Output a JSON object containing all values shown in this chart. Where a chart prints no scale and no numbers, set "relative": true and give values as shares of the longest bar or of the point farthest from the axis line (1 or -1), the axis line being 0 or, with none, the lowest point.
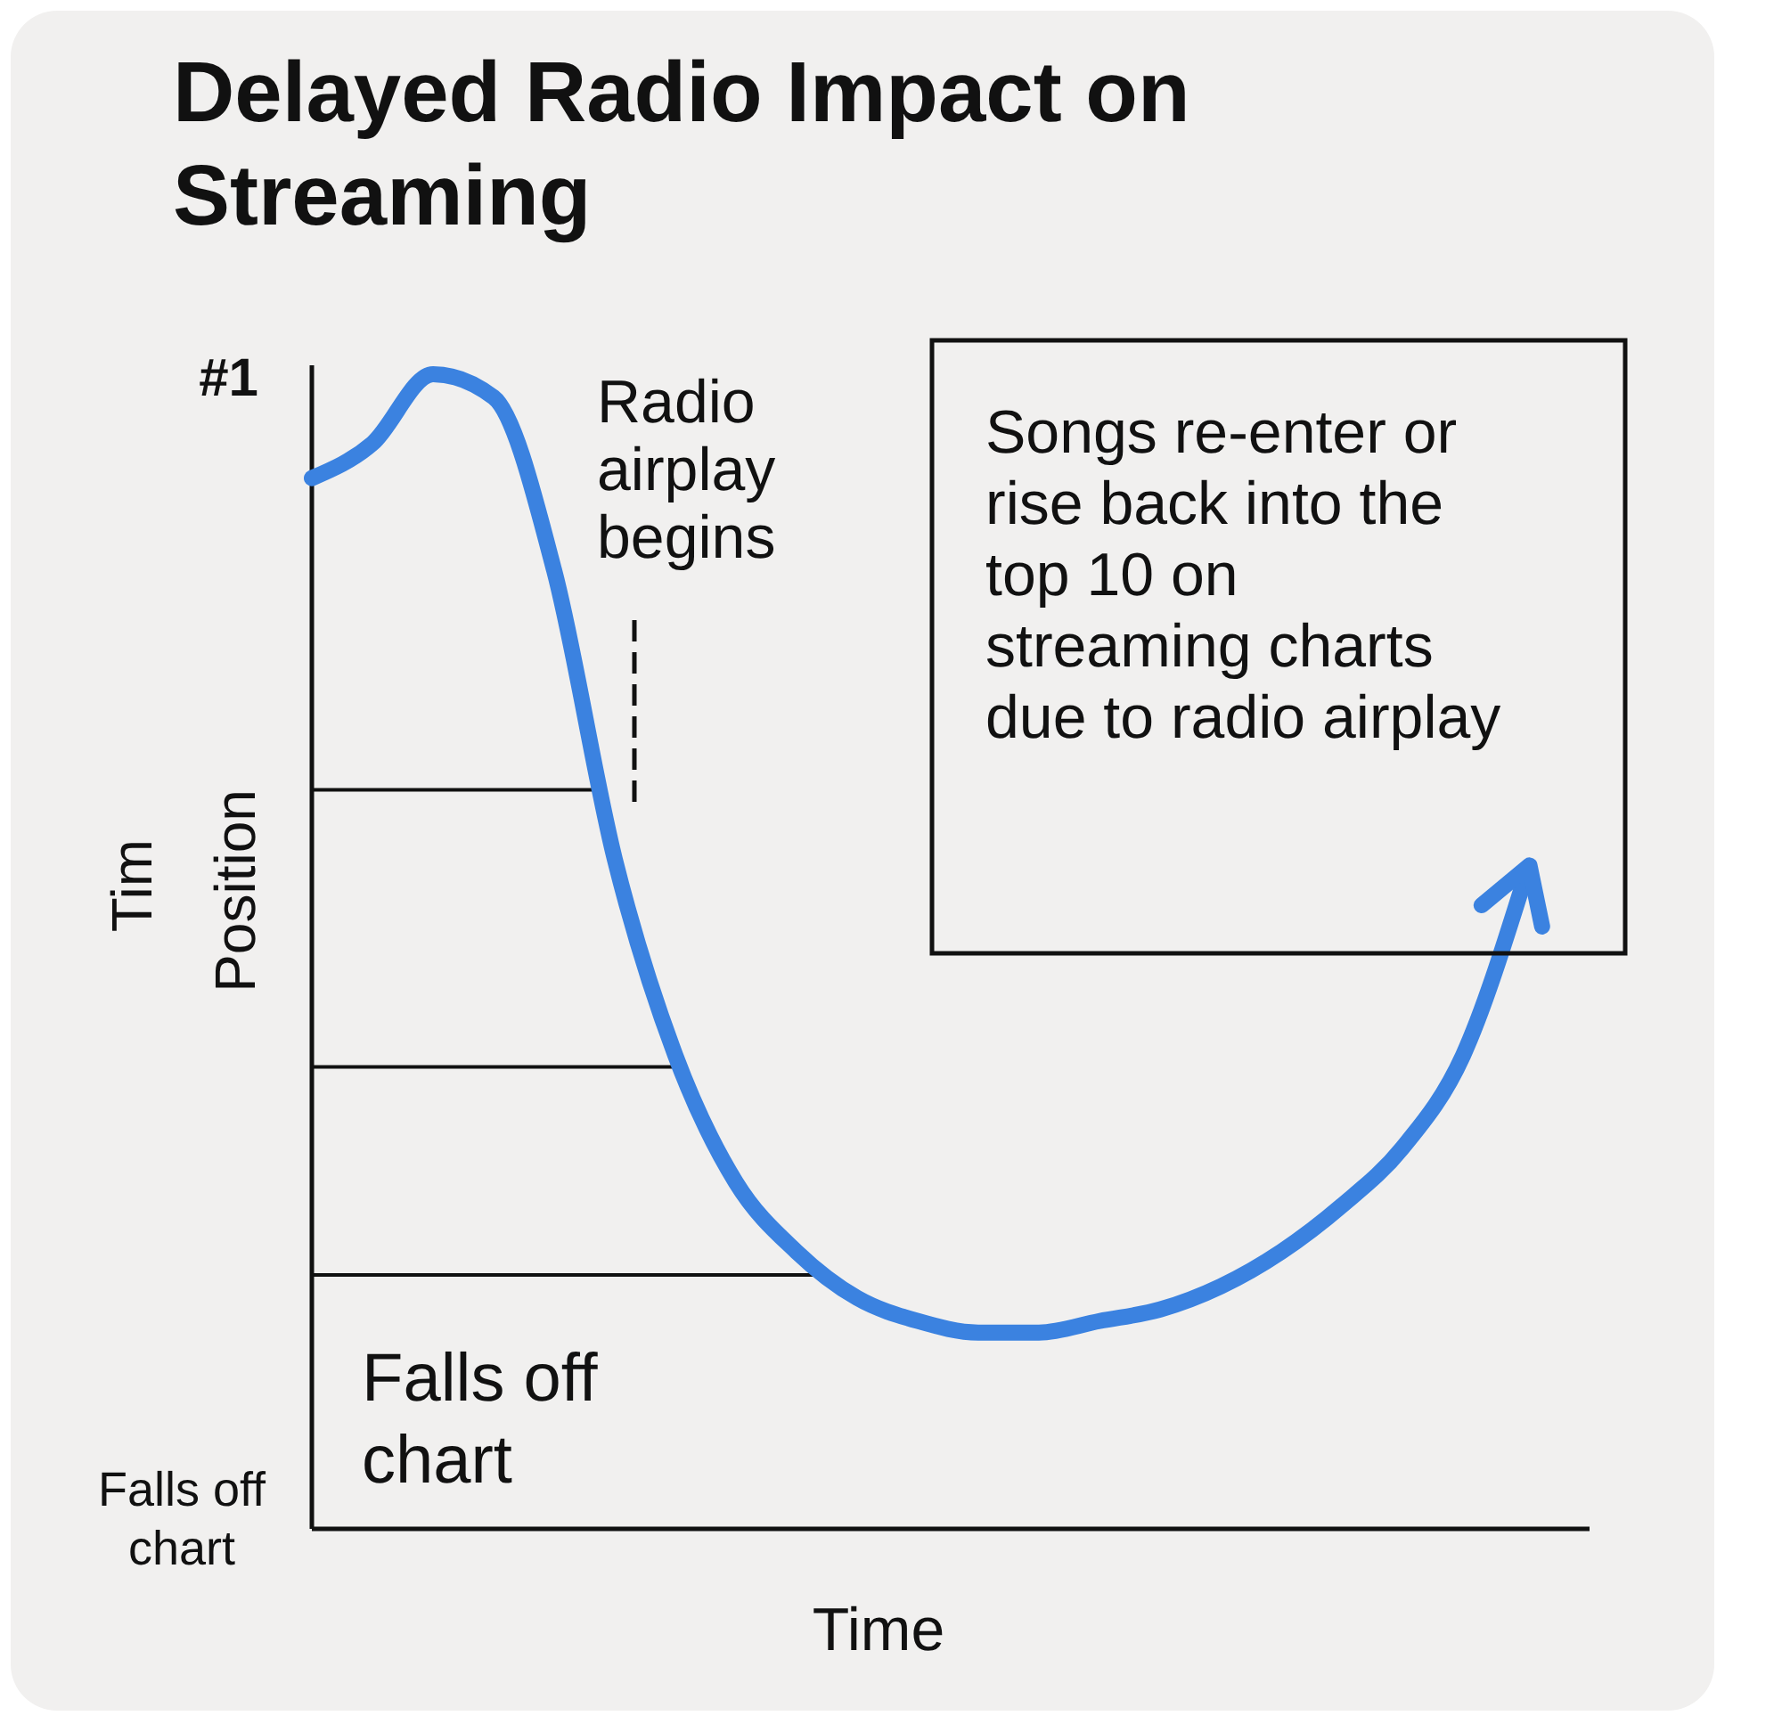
{
  "chart_data": {
    "type": "line",
    "title": "Delayed Radio Impact on Streaming",
    "xlabel": "Time",
    "ylabel": "Position",
    "relative": true,
    "marker": "none",
    "line_style": "solid",
    "categories": [
      null,
      null,
      null,
      null,
      null,
      null,
      null,
      null,
      null,
      null,
      null,
      null,
      null,
      null,
      null,
      null,
      null,
      null,
      null,
      null,
      null
    ],
    "series": [
      {
        "color": "#3b82e0",
        "values": [
          0.91,
          0.94,
          1.0,
          0.98,
          0.83,
          0.58,
          0.41,
          0.3,
          0.24,
          0.2,
          0.18,
          0.17,
          0.17,
          0.18,
          0.19,
          0.21,
          0.24,
          0.28,
          0.33,
          0.41,
          0.56
        ]
      }
    ],
    "ref_lines": [
      {
        "axis": "y",
        "value": 0.64,
        "color": "#111111"
      },
      {
        "axis": "y",
        "value": 0.4,
        "color": "#111111"
      },
      {
        "axis": "y",
        "value": 0.22,
        "color": "#111111"
      }
    ],
    "annotations": [
      "#1",
      "Falls off chart",
      "Tim",
      "Radio airplay begins",
      "Falls off chart",
      "Songs re-enter or rise back into the top 10 on streaming charts due to radio airplay"
    ]
  }
}
